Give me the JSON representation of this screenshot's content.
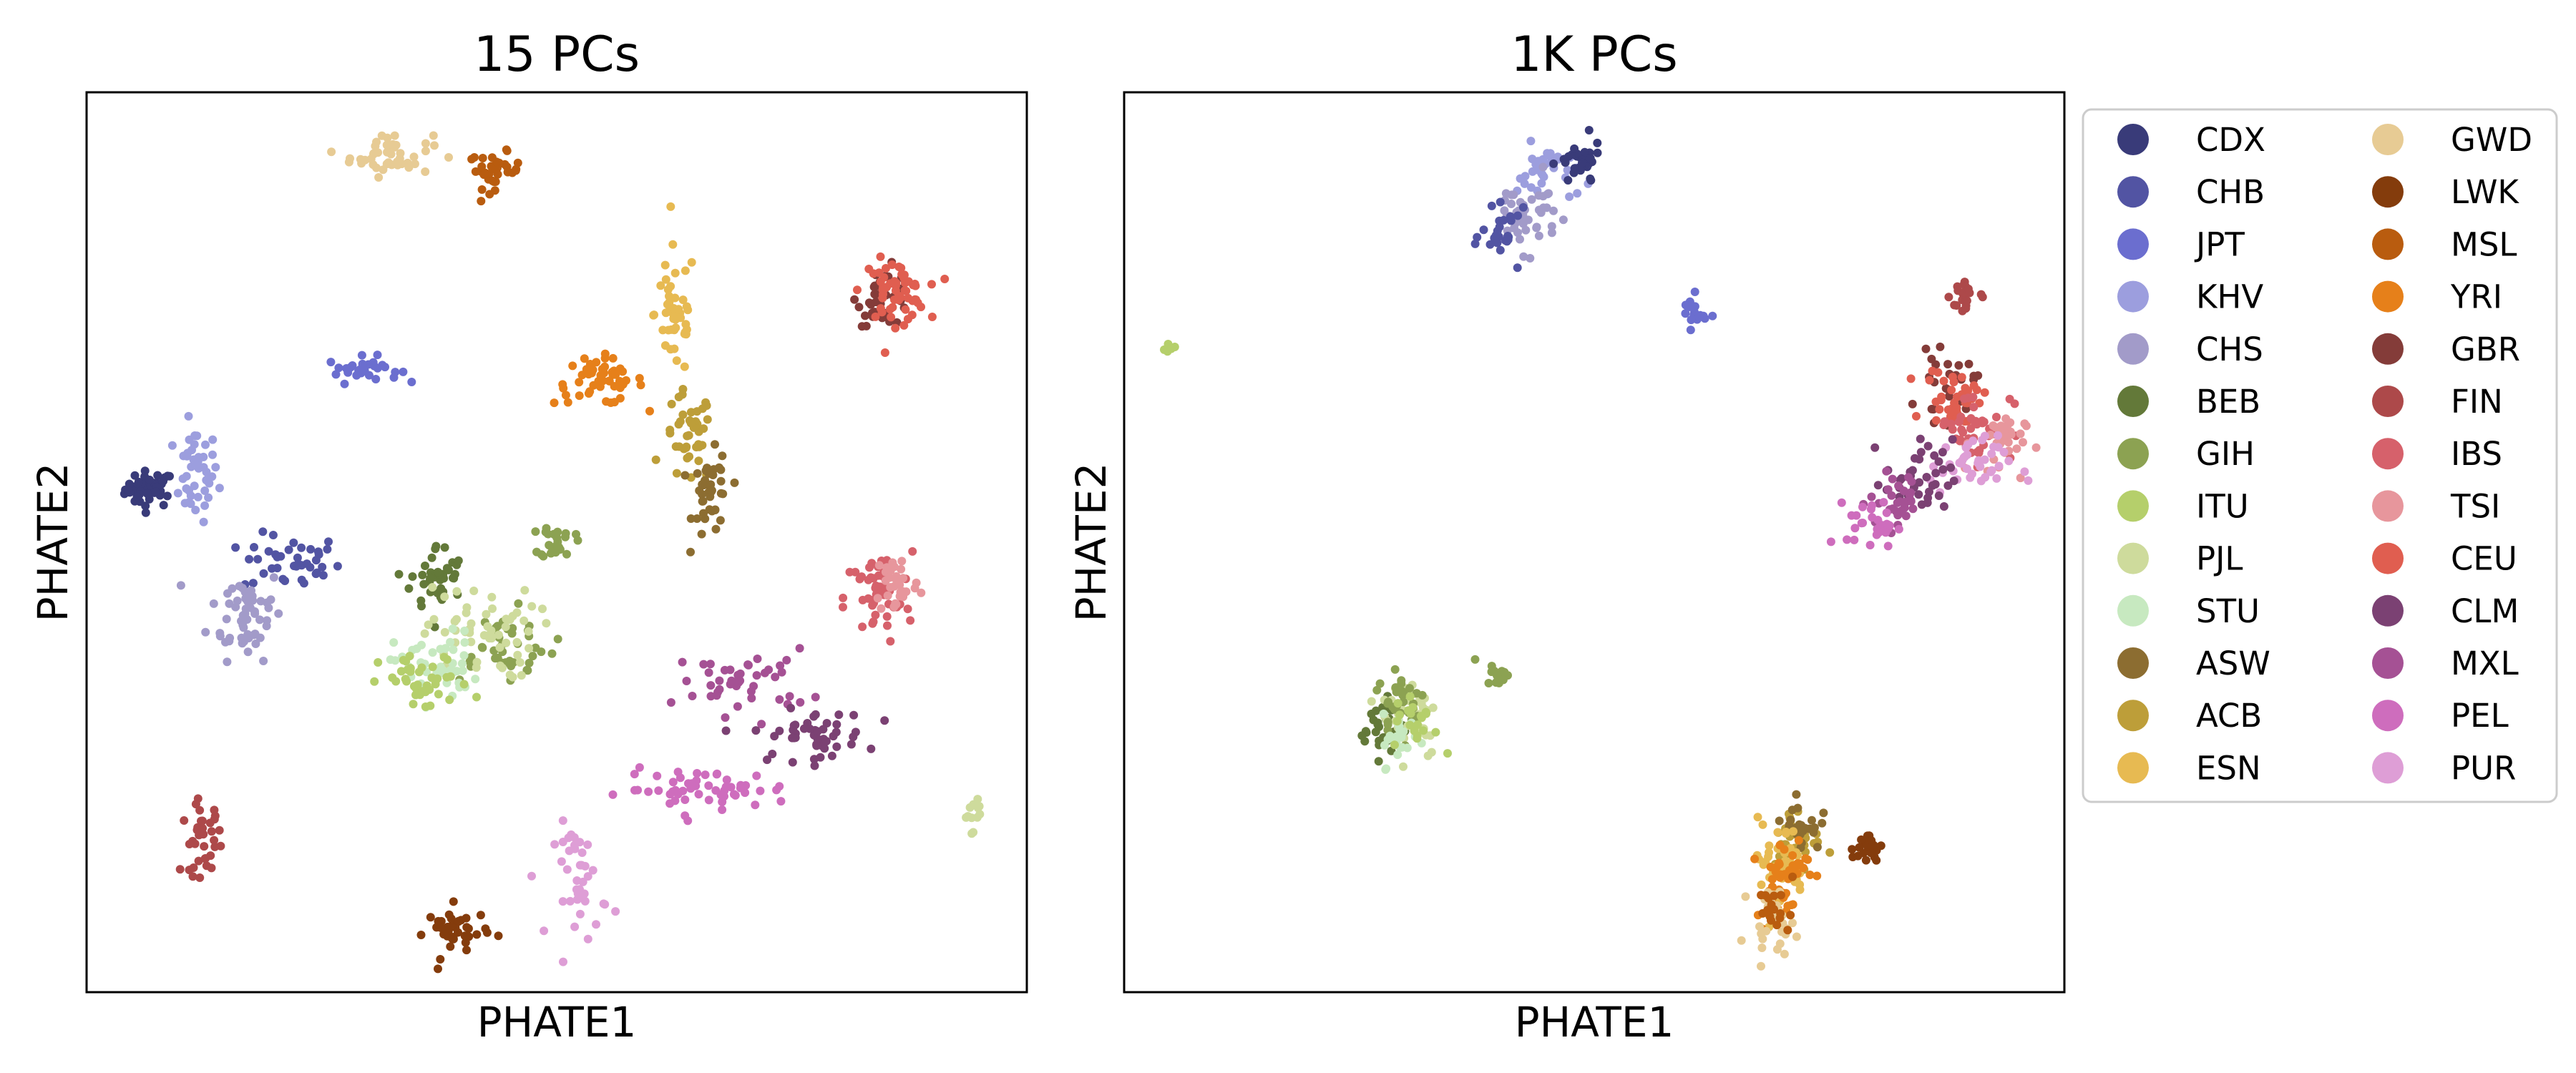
{
  "chart_data": [
    {
      "type": "scatter",
      "title": "15 PCs",
      "xlabel": "PHATE1",
      "ylabel": "PHATE2",
      "xticks": false,
      "yticks": false,
      "grid": false,
      "xlim": [
        0,
        100
      ],
      "ylim": [
        0,
        100
      ],
      "clusters": [
        {
          "pop": "CDX",
          "x": 6.7,
          "y": 55.9,
          "sx": 1.3,
          "sy": 1.0,
          "n": 45
        },
        {
          "pop": "KHV",
          "x": 11.6,
          "y": 57.5,
          "sx": 1.2,
          "sy": 2.6,
          "n": 45
        },
        {
          "pop": "CHB",
          "x": 21.8,
          "y": 47.7,
          "sx": 2.6,
          "sy": 1.6,
          "n": 40
        },
        {
          "pop": "CHS",
          "x": 17.0,
          "y": 42.2,
          "sx": 2.0,
          "sy": 2.6,
          "n": 55
        },
        {
          "pop": "JPT",
          "x": 29.4,
          "y": 69.2,
          "sx": 1.9,
          "sy": 0.7,
          "n": 30
        },
        {
          "pop": "GWD",
          "x": 32.4,
          "y": 93.1,
          "sx": 2.2,
          "sy": 1.2,
          "n": 45
        },
        {
          "pop": "MSL",
          "x": 43.4,
          "y": 91.3,
          "sx": 1.4,
          "sy": 1.0,
          "n": 35
        },
        {
          "pop": "YRI",
          "x": 54.5,
          "y": 67.9,
          "sx": 2.4,
          "sy": 1.3,
          "n": 50
        },
        {
          "pop": "ESN",
          "x": 62.6,
          "y": 75.5,
          "sx": 1.1,
          "sy": 3.6,
          "n": 45
        },
        {
          "pop": "ACB",
          "x": 64.0,
          "y": 61.5,
          "sx": 1.3,
          "sy": 2.6,
          "n": 40
        },
        {
          "pop": "ASW",
          "x": 66.5,
          "y": 55.0,
          "sx": 1.0,
          "sy": 2.4,
          "n": 40
        },
        {
          "pop": "GBR",
          "x": 84.8,
          "y": 77.3,
          "sx": 1.4,
          "sy": 1.6,
          "n": 40
        },
        {
          "pop": "CEU",
          "x": 85.9,
          "y": 77.9,
          "sx": 1.7,
          "sy": 1.7,
          "n": 60
        },
        {
          "pop": "IBS",
          "x": 84.2,
          "y": 43.7,
          "sx": 1.8,
          "sy": 2.6,
          "n": 50
        },
        {
          "pop": "TSI",
          "x": 86.2,
          "y": 45.5,
          "sx": 1.2,
          "sy": 1.8,
          "n": 35
        },
        {
          "pop": "BEB",
          "x": 37.3,
          "y": 46.0,
          "sx": 1.4,
          "sy": 1.9,
          "n": 40
        },
        {
          "pop": "GIH",
          "x": 50.1,
          "y": 50.1,
          "sx": 0.9,
          "sy": 1.0,
          "n": 25
        },
        {
          "pop": "GIH",
          "x": 44.0,
          "y": 38.5,
          "sx": 3.0,
          "sy": 2.0,
          "n": 40
        },
        {
          "pop": "PJL",
          "x": 41.8,
          "y": 40.0,
          "sx": 3.0,
          "sy": 2.6,
          "n": 55
        },
        {
          "pop": "STU",
          "x": 37.1,
          "y": 36.1,
          "sx": 2.2,
          "sy": 2.0,
          "n": 45
        },
        {
          "pop": "ITU",
          "x": 36.0,
          "y": 34.3,
          "sx": 2.4,
          "sy": 1.6,
          "n": 40
        },
        {
          "pop": "MXL",
          "x": 70.0,
          "y": 34.5,
          "sx": 3.5,
          "sy": 1.8,
          "n": 45
        },
        {
          "pop": "CLM",
          "x": 77.0,
          "y": 28.5,
          "sx": 3.0,
          "sy": 1.4,
          "n": 50
        },
        {
          "pop": "PEL",
          "x": 66.0,
          "y": 22.5,
          "sx": 4.5,
          "sy": 1.1,
          "n": 55
        },
        {
          "pop": "PUR",
          "x": 52.6,
          "y": 12.4,
          "sx": 1.4,
          "sy": 3.2,
          "n": 40
        },
        {
          "pop": "FIN",
          "x": 12.3,
          "y": 17.1,
          "sx": 1.1,
          "sy": 2.0,
          "n": 35
        },
        {
          "pop": "LWK",
          "x": 39.4,
          "y": 6.7,
          "sx": 1.6,
          "sy": 1.4,
          "n": 40
        },
        {
          "pop": "PJL",
          "x": 94.2,
          "y": 20.0,
          "sx": 0.5,
          "sy": 1.0,
          "n": 12
        }
      ]
    },
    {
      "type": "scatter",
      "title": "1K PCs",
      "xlabel": "PHATE1",
      "ylabel": "PHATE2",
      "xticks": false,
      "yticks": false,
      "grid": false,
      "xlim": [
        0,
        100
      ],
      "ylim": [
        0,
        100
      ],
      "clusters": [
        {
          "pop": "KHV",
          "x": 45.0,
          "y": 91.0,
          "sx": 1.6,
          "sy": 1.6,
          "n": 35
        },
        {
          "pop": "CHS",
          "x": 42.5,
          "y": 86.5,
          "sx": 1.8,
          "sy": 2.0,
          "n": 45
        },
        {
          "pop": "CHB",
          "x": 40.5,
          "y": 84.0,
          "sx": 1.2,
          "sy": 1.4,
          "n": 25
        },
        {
          "pop": "CDX",
          "x": 48.5,
          "y": 92.0,
          "sx": 1.1,
          "sy": 1.3,
          "n": 35
        },
        {
          "pop": "JPT",
          "x": 60.5,
          "y": 75.5,
          "sx": 0.7,
          "sy": 0.9,
          "n": 20
        },
        {
          "pop": "ITU",
          "x": 4.8,
          "y": 71.5,
          "sx": 0.4,
          "sy": 0.4,
          "n": 6
        },
        {
          "pop": "FIN",
          "x": 89.5,
          "y": 77.5,
          "sx": 0.8,
          "sy": 1.3,
          "n": 20
        },
        {
          "pop": "GBR",
          "x": 87.5,
          "y": 67.0,
          "sx": 1.5,
          "sy": 1.8,
          "n": 30
        },
        {
          "pop": "CEU",
          "x": 88.5,
          "y": 66.0,
          "sx": 1.6,
          "sy": 1.7,
          "n": 40
        },
        {
          "pop": "IBS",
          "x": 90.5,
          "y": 63.0,
          "sx": 2.0,
          "sy": 2.0,
          "n": 45
        },
        {
          "pop": "TSI",
          "x": 93.0,
          "y": 61.0,
          "sx": 1.4,
          "sy": 1.8,
          "n": 30
        },
        {
          "pop": "PUR",
          "x": 90.0,
          "y": 58.5,
          "sx": 2.2,
          "sy": 1.6,
          "n": 40
        },
        {
          "pop": "CLM",
          "x": 84.5,
          "y": 57.0,
          "sx": 1.8,
          "sy": 2.2,
          "n": 40
        },
        {
          "pop": "MXL",
          "x": 82.5,
          "y": 54.5,
          "sx": 1.6,
          "sy": 1.6,
          "n": 30
        },
        {
          "pop": "PEL",
          "x": 79.5,
          "y": 52.0,
          "sx": 1.3,
          "sy": 1.3,
          "n": 30
        },
        {
          "pop": "BEB",
          "x": 27.5,
          "y": 29.5,
          "sx": 1.2,
          "sy": 1.6,
          "n": 35
        },
        {
          "pop": "PJL",
          "x": 30.5,
          "y": 31.0,
          "sx": 1.6,
          "sy": 2.5,
          "n": 45
        },
        {
          "pop": "GIH",
          "x": 29.5,
          "y": 32.5,
          "sx": 1.3,
          "sy": 2.0,
          "n": 30
        },
        {
          "pop": "STU",
          "x": 29.5,
          "y": 28.0,
          "sx": 1.0,
          "sy": 1.5,
          "n": 25
        },
        {
          "pop": "ITU",
          "x": 31.0,
          "y": 30.0,
          "sx": 1.2,
          "sy": 1.6,
          "n": 20
        },
        {
          "pop": "GIH",
          "x": 39.7,
          "y": 35.5,
          "sx": 0.7,
          "sy": 0.7,
          "n": 15
        },
        {
          "pop": "ACB",
          "x": 71.5,
          "y": 17.0,
          "sx": 1.3,
          "sy": 1.8,
          "n": 40
        },
        {
          "pop": "ASW",
          "x": 72.0,
          "y": 18.5,
          "sx": 1.0,
          "sy": 1.4,
          "n": 25
        },
        {
          "pop": "ESN",
          "x": 69.5,
          "y": 14.0,
          "sx": 1.5,
          "sy": 2.5,
          "n": 45
        },
        {
          "pop": "YRI",
          "x": 70.0,
          "y": 13.0,
          "sx": 1.4,
          "sy": 2.5,
          "n": 45
        },
        {
          "pop": "GWD",
          "x": 69.0,
          "y": 8.0,
          "sx": 1.2,
          "sy": 1.7,
          "n": 30
        },
        {
          "pop": "MSL",
          "x": 69.5,
          "y": 9.0,
          "sx": 1.0,
          "sy": 1.4,
          "n": 20
        },
        {
          "pop": "LWK",
          "x": 79.0,
          "y": 16.0,
          "sx": 0.8,
          "sy": 0.9,
          "n": 20
        }
      ]
    }
  ],
  "legend": {
    "placement": "right",
    "entries": [
      {
        "label": "CDX",
        "color": "#393b79"
      },
      {
        "label": "CHB",
        "color": "#5254a3"
      },
      {
        "label": "JPT",
        "color": "#6b6ecf"
      },
      {
        "label": "KHV",
        "color": "#9c9ede"
      },
      {
        "label": "CHS",
        "color": "#a29bc9"
      },
      {
        "label": "BEB",
        "color": "#637939"
      },
      {
        "label": "GIH",
        "color": "#8ca252"
      },
      {
        "label": "ITU",
        "color": "#b5cf6b"
      },
      {
        "label": "PJL",
        "color": "#cedb9c"
      },
      {
        "label": "STU",
        "color": "#c7e9c0"
      },
      {
        "label": "ASW",
        "color": "#8c6d31"
      },
      {
        "label": "ACB",
        "color": "#bd9e39"
      },
      {
        "label": "ESN",
        "color": "#e7ba52"
      },
      {
        "label": "GWD",
        "color": "#e7cb94"
      },
      {
        "label": "LWK",
        "color": "#843c0c"
      },
      {
        "label": "MSL",
        "color": "#b95c0f"
      },
      {
        "label": "YRI",
        "color": "#e6801a"
      },
      {
        "label": "GBR",
        "color": "#843c39"
      },
      {
        "label": "FIN",
        "color": "#ad494a"
      },
      {
        "label": "IBS",
        "color": "#d6616b"
      },
      {
        "label": "TSI",
        "color": "#e7969c"
      },
      {
        "label": "CEU",
        "color": "#e05e50"
      },
      {
        "label": "CLM",
        "color": "#7b4173"
      },
      {
        "label": "MXL",
        "color": "#a55194"
      },
      {
        "label": "PEL",
        "color": "#ce6dbd"
      },
      {
        "label": "PUR",
        "color": "#de9ed6"
      }
    ]
  }
}
